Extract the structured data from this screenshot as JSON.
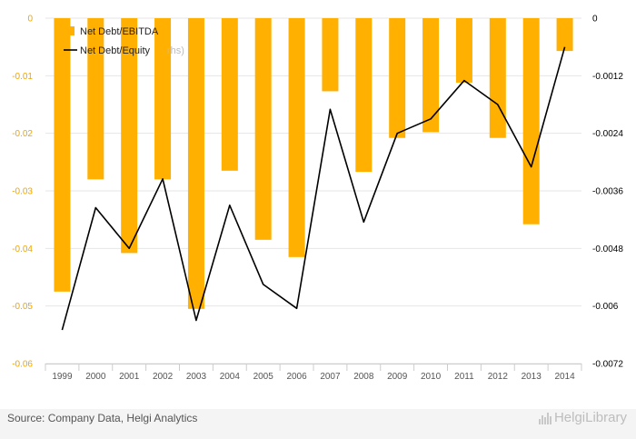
{
  "chart_data": {
    "type": "bar",
    "categories": [
      "1999",
      "2000",
      "2001",
      "2002",
      "2003",
      "2004",
      "2005",
      "2006",
      "2007",
      "2008",
      "2009",
      "2010",
      "2011",
      "2012",
      "2013",
      "2014"
    ],
    "series": [
      {
        "name": "Net Debt/EBITDA",
        "type": "bar",
        "axis": "left",
        "color": "#ffb000",
        "values": [
          -0.0475,
          -0.028,
          -0.0408,
          -0.028,
          -0.0505,
          -0.0265,
          -0.0385,
          -0.0415,
          -0.0127,
          -0.0267,
          -0.0208,
          -0.0198,
          -0.0112,
          -0.0208,
          -0.0358,
          -0.0057
        ]
      },
      {
        "name": "Net Debt/Equity",
        "type": "line",
        "axis": "right",
        "color": "#000000",
        "values": [
          -0.0065,
          -0.00395,
          -0.0048,
          -0.00335,
          -0.0063,
          -0.0039,
          -0.00555,
          -0.00605,
          -0.0019,
          -0.00425,
          -0.0024,
          -0.0021,
          -0.0013,
          -0.0018,
          -0.0031,
          -0.0006
        ]
      }
    ],
    "y_left": {
      "ylim": [
        -0.06,
        0
      ],
      "ticks": [
        0,
        -0.01,
        -0.02,
        -0.03,
        -0.04,
        -0.05,
        -0.06
      ],
      "tick_labels": [
        "0",
        "-0.01",
        "-0.02",
        "-0.03",
        "-0.04",
        "-0.05",
        "-0.06"
      ]
    },
    "y_right": {
      "ylim": [
        -0.0072,
        0
      ],
      "ticks": [
        0,
        -0.0012,
        -0.0024,
        -0.0036,
        -0.0048,
        -0.006,
        -0.0072
      ],
      "tick_labels": [
        "0",
        "-0.0012",
        "-0.0024",
        "-0.0036",
        "-0.0048",
        "-0.006",
        "-0.0072"
      ]
    },
    "legend": {
      "position": "top-left",
      "overflow_text": "rhs)"
    },
    "grid": true
  },
  "footer": {
    "source": "Source: Company Data, Helgi Analytics",
    "brand": "HelgiLibrary"
  }
}
